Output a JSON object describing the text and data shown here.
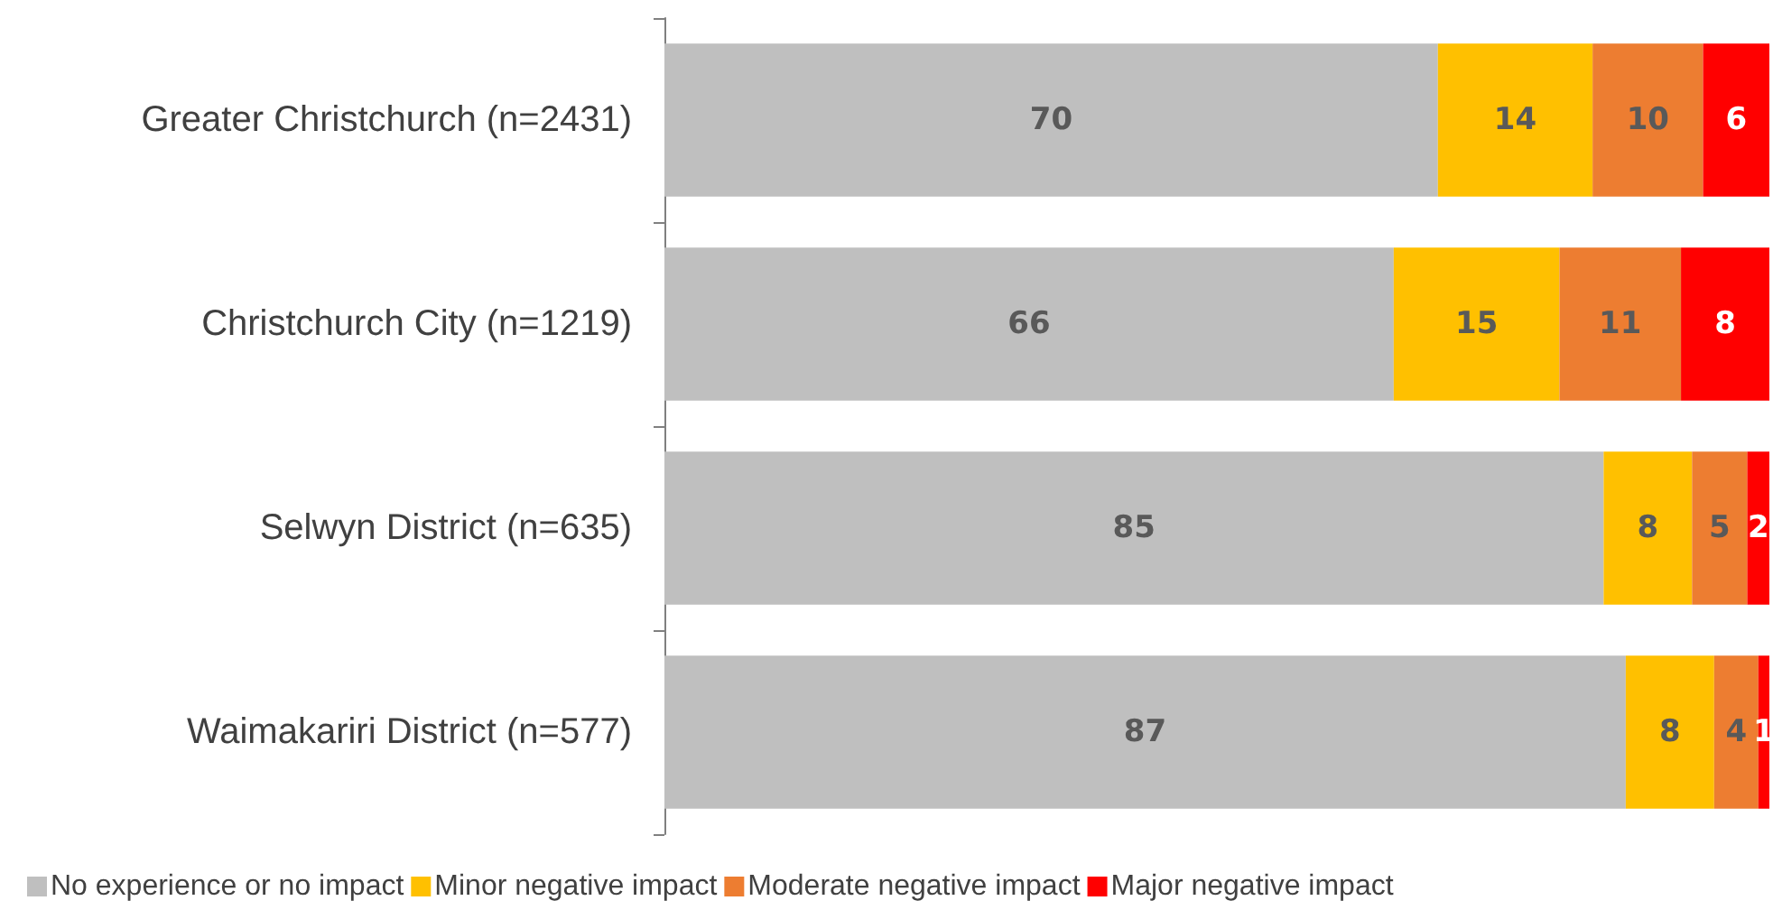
{
  "chart_data": {
    "type": "bar",
    "orientation": "horizontal",
    "stacked": true,
    "data_labels": true,
    "legend": "bottom",
    "grid": false,
    "tick_labels": "y",
    "xlim": [
      0,
      100
    ],
    "categories": [
      "Greater Christchurch (n=2431)",
      "Christchurch City (n=1219)",
      "Selwyn District (n=635)",
      "Waimakariri District (n=577)"
    ],
    "series": [
      {
        "name": "No experience or no impact",
        "color": "#bfbfbf",
        "values": [
          70,
          66,
          85,
          87
        ]
      },
      {
        "name": "Minor negative impact",
        "color": "#ffc000",
        "values": [
          14,
          15,
          8,
          8
        ]
      },
      {
        "name": "Moderate negative impact",
        "color": "#ed7d31",
        "values": [
          10,
          11,
          5,
          4
        ]
      },
      {
        "name": "Major negative impact",
        "color": "#ff0000",
        "values": [
          6,
          8,
          2,
          1
        ]
      }
    ]
  }
}
